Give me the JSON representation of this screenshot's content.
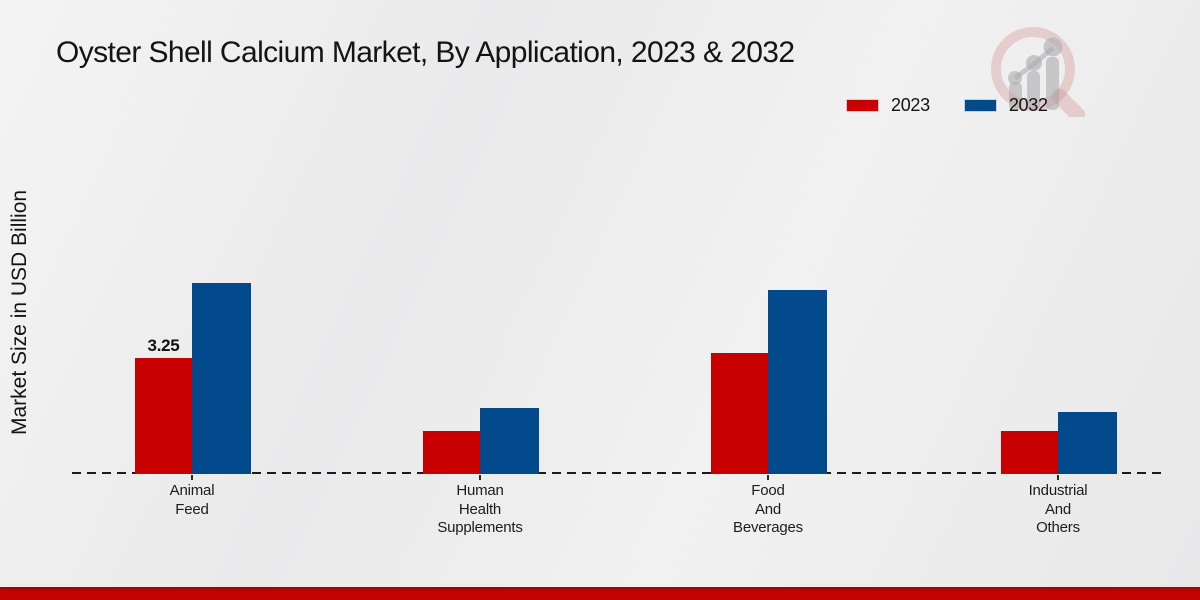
{
  "page": {
    "title": "Oyster Shell Calcium Market, By Application, 2023 & 2032"
  },
  "axes": {
    "y_label": "Market Size in USD Billion"
  },
  "watermark": {
    "icon": "magnifier-growth-chart-logo"
  },
  "footer": {
    "band_color": "#c30202"
  },
  "chart_data": {
    "type": "bar",
    "title": "Oyster Shell Calcium Market, By Application, 2023 & 2032",
    "xlabel": "",
    "ylabel": "Market Size in USD Billion",
    "categories": [
      "Animal Feed",
      "Human Health Supplements",
      "Food And Beverages",
      "Industrial And Others"
    ],
    "category_label_lines": [
      [
        "Animal",
        "Feed"
      ],
      [
        "Human",
        "Health",
        "Supplements"
      ],
      [
        "Food",
        "And",
        "Beverages"
      ],
      [
        "Industrial",
        "And",
        "Others"
      ]
    ],
    "series": [
      {
        "name": "2023",
        "color": "#c90001",
        "values": [
          3.25,
          1.2,
          3.4,
          1.2
        ],
        "data_labels": [
          "3.25",
          null,
          null,
          null
        ]
      },
      {
        "name": "2032",
        "color": "#024a8b",
        "values": [
          5.35,
          1.85,
          5.15,
          1.75
        ],
        "data_labels": [
          null,
          null,
          null,
          null
        ]
      }
    ],
    "ylim": [
      0,
      6
    ],
    "grid": false,
    "y_axis_ticks_visible": false,
    "baseline_style": "dashed",
    "legend_position": "top-right",
    "units": "USD Billion"
  }
}
